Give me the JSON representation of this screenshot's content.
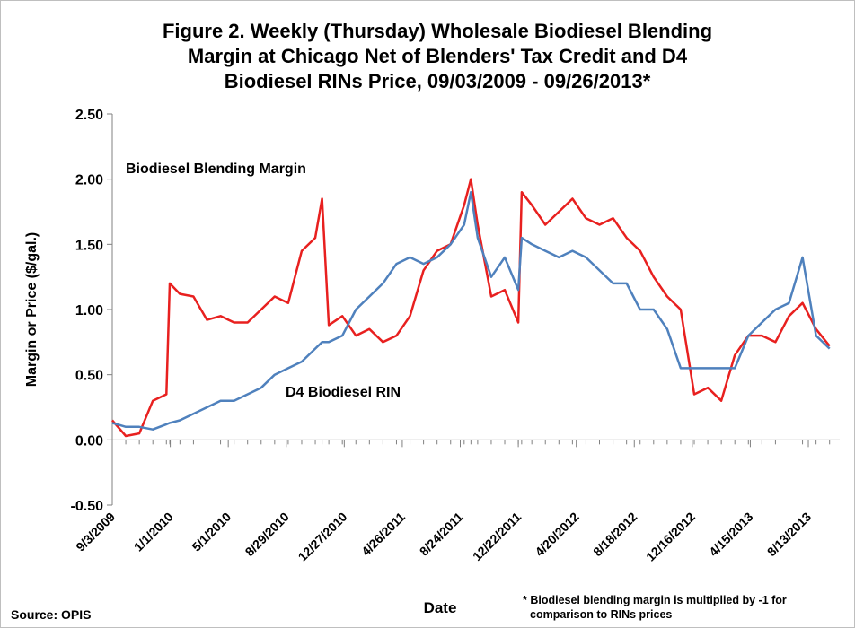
{
  "chart_data": {
    "type": "line",
    "title": [
      "Figure 2. Weekly (Thursday) Wholesale Biodiesel Blending",
      "Margin at Chicago Net of Blenders' Tax Credit and D4",
      "Biodiesel RINs Price, 09/03/2009 - 09/26/2013*"
    ],
    "xlabel": "Date",
    "ylabel": "Margin or Price ($/gal.)",
    "annotations": [
      "Biodiesel Blending Margin",
      "D4 Biodiesel RIN",
      "Source: OPIS",
      "* Biodiesel blending margin is multiplied by -1 for",
      "comparison to RINs prices"
    ],
    "x": [
      "9/3/2009",
      "10/1/2009",
      "10/29/2009",
      "11/26/2009",
      "12/24/2009",
      "12/31/2009",
      "1/21/2010",
      "2/18/2010",
      "3/18/2010",
      "4/15/2010",
      "5/13/2010",
      "6/10/2010",
      "7/8/2010",
      "8/5/2010",
      "9/2/2010",
      "9/30/2010",
      "10/28/2010",
      "11/11/2010",
      "11/25/2010",
      "12/23/2010",
      "1/20/2011",
      "2/17/2011",
      "3/17/2011",
      "4/14/2011",
      "5/12/2011",
      "6/9/2011",
      "7/7/2011",
      "8/4/2011",
      "9/1/2011",
      "9/15/2011",
      "9/29/2011",
      "10/27/2011",
      "11/24/2011",
      "12/22/2011",
      "12/29/2011",
      "1/19/2012",
      "2/16/2012",
      "3/15/2012",
      "4/12/2012",
      "5/10/2012",
      "6/7/2012",
      "7/5/2012",
      "8/2/2012",
      "8/30/2012",
      "9/27/2012",
      "10/25/2012",
      "11/22/2012",
      "12/20/2012",
      "1/17/2013",
      "2/14/2013",
      "3/14/2013",
      "4/11/2013",
      "5/9/2013",
      "6/6/2013",
      "7/4/2013",
      "8/1/2013",
      "8/29/2013",
      "9/26/2013"
    ],
    "series": [
      {
        "name": "Biodiesel Blending Margin",
        "color": "#e8201f",
        "values": [
          0.15,
          0.03,
          0.05,
          0.3,
          0.35,
          1.2,
          1.12,
          1.1,
          0.92,
          0.95,
          0.9,
          0.9,
          1.0,
          1.1,
          1.05,
          1.45,
          1.55,
          1.85,
          0.88,
          0.95,
          0.8,
          0.85,
          0.75,
          0.8,
          0.95,
          1.3,
          1.45,
          1.5,
          1.8,
          2.0,
          1.65,
          1.1,
          1.15,
          0.9,
          1.9,
          1.8,
          1.65,
          1.75,
          1.85,
          1.7,
          1.65,
          1.7,
          1.55,
          1.45,
          1.25,
          1.1,
          1.0,
          0.35,
          0.4,
          0.3,
          0.65,
          0.8,
          0.8,
          0.75,
          0.95,
          1.05,
          0.85,
          0.72
        ]
      },
      {
        "name": "D4 Biodiesel RIN",
        "color": "#4f81bd",
        "values": [
          0.13,
          0.1,
          0.1,
          0.08,
          0.12,
          0.13,
          0.15,
          0.2,
          0.25,
          0.3,
          0.3,
          0.35,
          0.4,
          0.5,
          0.55,
          0.6,
          0.7,
          0.75,
          0.75,
          0.8,
          1.0,
          1.1,
          1.2,
          1.35,
          1.4,
          1.35,
          1.4,
          1.5,
          1.65,
          1.9,
          1.55,
          1.25,
          1.4,
          1.15,
          1.55,
          1.5,
          1.45,
          1.4,
          1.45,
          1.4,
          1.3,
          1.2,
          1.2,
          1.0,
          1.0,
          0.85,
          0.55,
          0.55,
          0.55,
          0.55,
          0.55,
          0.8,
          0.9,
          1.0,
          1.05,
          1.4,
          0.8,
          0.7
        ]
      }
    ],
    "xlim": [
      "9/3/2009",
      "10/17/2013"
    ],
    "xticks": [
      "9/3/2009",
      "1/1/2010",
      "5/1/2010",
      "8/29/2010",
      "12/27/2010",
      "4/26/2011",
      "8/24/2011",
      "12/22/2011",
      "4/20/2012",
      "8/18/2012",
      "12/16/2012",
      "4/15/2013",
      "8/13/2013"
    ],
    "ylim": [
      -0.5,
      2.5
    ],
    "yticks": [
      {
        "value": -0.5,
        "label": "-0.50"
      },
      {
        "value": 0,
        "label": "0.00"
      },
      {
        "value": 0.5,
        "label": "0.50"
      },
      {
        "value": 1,
        "label": "1.00"
      },
      {
        "value": 1.5,
        "label": "1.50"
      },
      {
        "value": 2,
        "label": "2.00"
      },
      {
        "value": 2.5,
        "label": "2.50"
      }
    ],
    "grid": false
  }
}
